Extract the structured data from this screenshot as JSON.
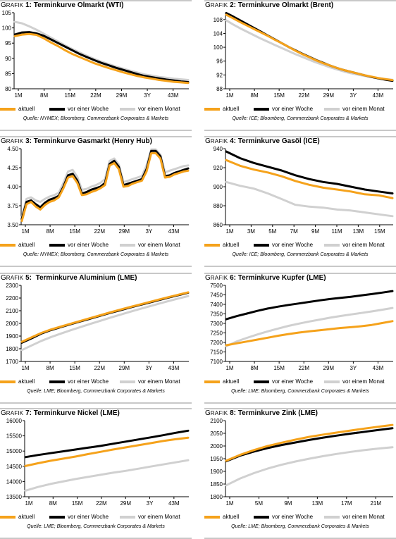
{
  "legend_labels": [
    "aktuell",
    "vor einer Woche",
    "vor einem Monat"
  ],
  "colors": {
    "aktuell": "#f5a21b",
    "woche": "#000000",
    "monat": "#d0d0d0"
  },
  "sources": {
    "nymex": "Quelle: NYMEX; Bloomberg, Commerzbank Corporates & Markets",
    "ice": "Quelle: ICE; Bloomberg, Commerzbank Corporates & Markets",
    "lme": "Quelle: LME; Bloomberg, Commerzbank Corporates & Markets"
  },
  "chart_data": [
    {
      "type": "line",
      "title_prefix": "RAFIK 1:",
      "title_rest": "Terminkurve Ölmarkt (WTI)",
      "title_display": "Terminkurve Olmarkt (WTI)",
      "x_ticks": [
        "1M",
        "8M",
        "15M",
        "22M",
        "29M",
        "3Y",
        "43M"
      ],
      "ylim": [
        80,
        105
      ],
      "y_ticks": [
        80,
        85,
        90,
        95,
        100,
        105
      ],
      "series": [
        {
          "name": "aktuell",
          "y": [
            97.3,
            97.8,
            98.0,
            97.7,
            96.6,
            95.2,
            94.0,
            92.6,
            91.4,
            90.4,
            89.4,
            88.4,
            87.6,
            86.8,
            86.1,
            85.4,
            84.8,
            84.2,
            83.7,
            83.3,
            82.9,
            82.6,
            82.3,
            82.1,
            81.9
          ]
        },
        {
          "name": "vor einer Woche",
          "y": [
            97.8,
            98.5,
            98.6,
            98.2,
            97.4,
            96.2,
            95.0,
            93.8,
            92.6,
            91.4,
            90.4,
            89.4,
            88.5,
            87.7,
            86.9,
            86.2,
            85.5,
            84.8,
            84.2,
            83.8,
            83.4,
            83.0,
            82.7,
            82.4,
            82.2
          ]
        },
        {
          "name": "vor einem Monat",
          "y": [
            102.0,
            101.5,
            100.5,
            99.4,
            98.1,
            96.8,
            95.5,
            94.2,
            93.0,
            91.9,
            90.8,
            89.8,
            88.9,
            88.1,
            87.3,
            86.6,
            85.9,
            85.3,
            84.7,
            84.3,
            83.9,
            83.6,
            83.3,
            83.1,
            82.9
          ]
        }
      ],
      "source_key": "nymex"
    },
    {
      "type": "line",
      "title_rest": "Terminkurve Olmarkt (Brent)",
      "x_ticks": [
        "1M",
        "8M",
        "15M",
        "22M",
        "29M",
        "3Y",
        "43M"
      ],
      "ylim": [
        88,
        110
      ],
      "y_ticks": [
        88,
        92,
        96,
        100,
        104,
        108
      ],
      "series": [
        {
          "name": "aktuell",
          "y": [
            109.4,
            108.4,
            107.3,
            106.3,
            105.3,
            104.3,
            103.3,
            102.2,
            101.2,
            100.1,
            99.0,
            98.0,
            97.1,
            96.2,
            95.4,
            94.7,
            94.0,
            93.4,
            92.9,
            92.4,
            91.9,
            91.5,
            91.1,
            90.8,
            90.5
          ]
        },
        {
          "name": "vor einer Woche",
          "y": [
            109.9,
            108.9,
            107.8,
            106.7,
            105.6,
            104.5,
            103.4,
            102.3,
            101.2,
            100.1,
            99.1,
            98.1,
            97.2,
            96.3,
            95.5,
            94.7,
            94.0,
            93.4,
            92.9,
            92.4,
            91.9,
            91.4,
            91.0,
            90.6,
            90.3
          ]
        },
        {
          "name": "vor einem Monat",
          "y": [
            107.8,
            106.6,
            105.5,
            104.5,
            103.5,
            102.5,
            101.6,
            100.7,
            99.8,
            98.9,
            98.0,
            97.2,
            96.4,
            95.6,
            94.9,
            94.2,
            93.6,
            93.0,
            92.5,
            92.1,
            91.7,
            91.4,
            91.1,
            90.8,
            90.6
          ]
        }
      ],
      "source_key": "ice"
    },
    {
      "type": "line",
      "title_rest": "Terminkurve Gasmarkt (Henry Hub)",
      "x_ticks": [
        "1M",
        "8M",
        "15M",
        "22M",
        "29M",
        "3Y",
        "43M"
      ],
      "ylim": [
        3.5,
        4.5
      ],
      "y_ticks": [
        3.5,
        3.75,
        4.0,
        4.25,
        4.5
      ],
      "series": [
        {
          "name": "aktuell",
          "y": [
            3.55,
            3.77,
            3.8,
            3.74,
            3.7,
            3.76,
            3.8,
            3.82,
            3.86,
            3.98,
            4.12,
            4.14,
            4.05,
            3.89,
            3.9,
            3.93,
            3.95,
            3.98,
            4.02,
            4.28,
            4.31,
            4.23,
            4.0,
            4.01,
            4.04,
            4.06,
            4.08,
            4.2,
            4.44,
            4.44,
            4.37,
            4.12,
            4.13,
            4.16,
            4.18,
            4.2,
            4.21
          ]
        },
        {
          "name": "vor einer Woche",
          "y": [
            3.58,
            3.8,
            3.82,
            3.77,
            3.73,
            3.79,
            3.83,
            3.85,
            3.88,
            4.0,
            4.15,
            4.17,
            4.08,
            3.91,
            3.93,
            3.96,
            3.98,
            4.0,
            4.05,
            4.3,
            4.34,
            4.26,
            4.02,
            4.04,
            4.06,
            4.08,
            4.1,
            4.23,
            4.47,
            4.47,
            4.4,
            4.14,
            4.15,
            4.18,
            4.2,
            4.22,
            4.24
          ]
        },
        {
          "name": "vor einem Monat",
          "y": [
            3.6,
            3.84,
            3.86,
            3.82,
            3.8,
            3.84,
            3.87,
            3.89,
            3.92,
            4.05,
            4.2,
            4.22,
            4.13,
            3.96,
            3.97,
            4.0,
            4.02,
            4.05,
            4.1,
            4.34,
            4.37,
            4.29,
            4.06,
            4.08,
            4.1,
            4.12,
            4.14,
            4.28,
            4.49,
            4.49,
            4.42,
            4.19,
            4.21,
            4.23,
            4.25,
            4.27,
            4.28
          ]
        }
      ],
      "source_key": "nymex"
    },
    {
      "type": "line",
      "title_rest": "Terminkurve Gasöl (ICE)",
      "x_ticks": [
        "1M",
        "3M",
        "5M",
        "7M",
        "9M",
        "11M",
        "13M",
        "15M"
      ],
      "ylim": [
        860,
        940
      ],
      "y_ticks": [
        860,
        880,
        900,
        920,
        940
      ],
      "series": [
        {
          "name": "aktuell",
          "y": [
            928,
            922,
            918,
            915,
            911,
            906,
            902,
            899,
            897,
            895,
            892,
            891,
            888
          ]
        },
        {
          "name": "vor einer Woche",
          "y": [
            937,
            930,
            925,
            921,
            917,
            912,
            908,
            905,
            903,
            900,
            897,
            895,
            893
          ]
        },
        {
          "name": "vor einem Monat",
          "y": [
            905,
            901,
            898,
            893,
            887,
            881,
            879,
            878,
            876,
            875,
            873,
            871,
            869
          ]
        }
      ],
      "source_key": "ice"
    },
    {
      "type": "line",
      "title_rest": "Terminkurve Aluminium (LME)",
      "x_ticks": [
        "1M",
        "8M",
        "15M",
        "22M",
        "29M",
        "3Y",
        "43M"
      ],
      "ylim": [
        1700,
        2300
      ],
      "y_ticks": [
        1700,
        1800,
        1900,
        2000,
        2100,
        2200,
        2300
      ],
      "series": [
        {
          "name": "aktuell",
          "y": [
            1855,
            1890,
            1925,
            1952,
            1975,
            1998,
            2020,
            2042,
            2064,
            2086,
            2107,
            2128,
            2148,
            2168,
            2188,
            2207,
            2226,
            2245
          ]
        },
        {
          "name": "vor einer Woche",
          "y": [
            1848,
            1883,
            1920,
            1948,
            1971,
            1994,
            2016,
            2038,
            2060,
            2082,
            2103,
            2124,
            2144,
            2164,
            2184,
            2204,
            2223,
            2242
          ]
        },
        {
          "name": "vor einem Monat",
          "y": [
            1790,
            1826,
            1862,
            1893,
            1920,
            1946,
            1971,
            1996,
            2020,
            2044,
            2067,
            2090,
            2112,
            2134,
            2155,
            2176,
            2196,
            2215
          ]
        }
      ],
      "source_key": "lme"
    },
    {
      "type": "line",
      "title_rest": "Terminkurve Kupfer (LME)",
      "x_ticks": [
        "1M",
        "8M",
        "15M",
        "22M",
        "29M",
        "3Y",
        "43M"
      ],
      "ylim": [
        7100,
        7500
      ],
      "y_ticks": [
        7100,
        7150,
        7200,
        7250,
        7300,
        7350,
        7400,
        7450,
        7500
      ],
      "series": [
        {
          "name": "aktuell",
          "y": [
            7185,
            7195,
            7205,
            7215,
            7225,
            7235,
            7244,
            7252,
            7258,
            7264,
            7270,
            7276,
            7280,
            7285,
            7292,
            7302,
            7312
          ]
        },
        {
          "name": "vor einer Woche",
          "y": [
            7322,
            7338,
            7352,
            7366,
            7378,
            7388,
            7397,
            7405,
            7413,
            7421,
            7428,
            7434,
            7440,
            7447,
            7454,
            7462,
            7470
          ]
        },
        {
          "name": "vor einem Monat",
          "y": [
            7180,
            7205,
            7224,
            7242,
            7258,
            7273,
            7287,
            7299,
            7310,
            7320,
            7330,
            7339,
            7347,
            7355,
            7363,
            7372,
            7381
          ]
        }
      ],
      "source_key": "lme"
    },
    {
      "type": "line",
      "title_rest": "Terminkurve Nickel (LME)",
      "x_ticks": [
        "1M",
        "8M",
        "15M",
        "22M",
        "29M",
        "3Y",
        "43M"
      ],
      "ylim": [
        13500,
        16000
      ],
      "y_ticks": [
        13500,
        14000,
        14500,
        15000,
        15500,
        16000
      ],
      "series": [
        {
          "name": "aktuell",
          "y": [
            14510,
            14600,
            14680,
            14750,
            14820,
            14900,
            14975,
            15050,
            15120,
            15190,
            15260,
            15330,
            15390,
            15440
          ]
        },
        {
          "name": "vor einer Woche",
          "y": [
            14800,
            14870,
            14930,
            14990,
            15050,
            15110,
            15170,
            15240,
            15310,
            15380,
            15450,
            15520,
            15600,
            15670
          ]
        },
        {
          "name": "vor einem Monat",
          "y": [
            13700,
            13820,
            13920,
            14000,
            14080,
            14150,
            14220,
            14290,
            14350,
            14420,
            14490,
            14560,
            14630,
            14700
          ]
        }
      ],
      "source_key": "lme"
    },
    {
      "type": "line",
      "title_rest": "Terminkurve Zink (LME)",
      "x_ticks": [
        "1M",
        "5M",
        "9M",
        "13M",
        "17M",
        "21M"
      ],
      "ylim": [
        1800,
        2100
      ],
      "y_ticks": [
        1800,
        1850,
        1900,
        1950,
        2000,
        2050,
        2100
      ],
      "series": [
        {
          "name": "aktuell",
          "y": [
            1942,
            1965,
            1984,
            2000,
            2013,
            2025,
            2036,
            2045,
            2053,
            2061,
            2069,
            2076,
            2083
          ]
        },
        {
          "name": "vor einer Woche",
          "y": [
            1940,
            1962,
            1978,
            1992,
            2004,
            2014,
            2024,
            2033,
            2041,
            2049,
            2056,
            2063,
            2070
          ]
        },
        {
          "name": "vor einem Monat",
          "y": [
            1845,
            1872,
            1893,
            1911,
            1926,
            1939,
            1950,
            1960,
            1969,
            1977,
            1984,
            1990,
            1995
          ]
        }
      ],
      "source_key": "lme"
    }
  ],
  "titles": {
    "prefix": [
      "G",
      "RAFIK",
      " 1: ",
      " 2: ",
      " 3: ",
      " 4: ",
      " 5:  ",
      " 6: ",
      " 7: ",
      " 8: "
    ]
  }
}
